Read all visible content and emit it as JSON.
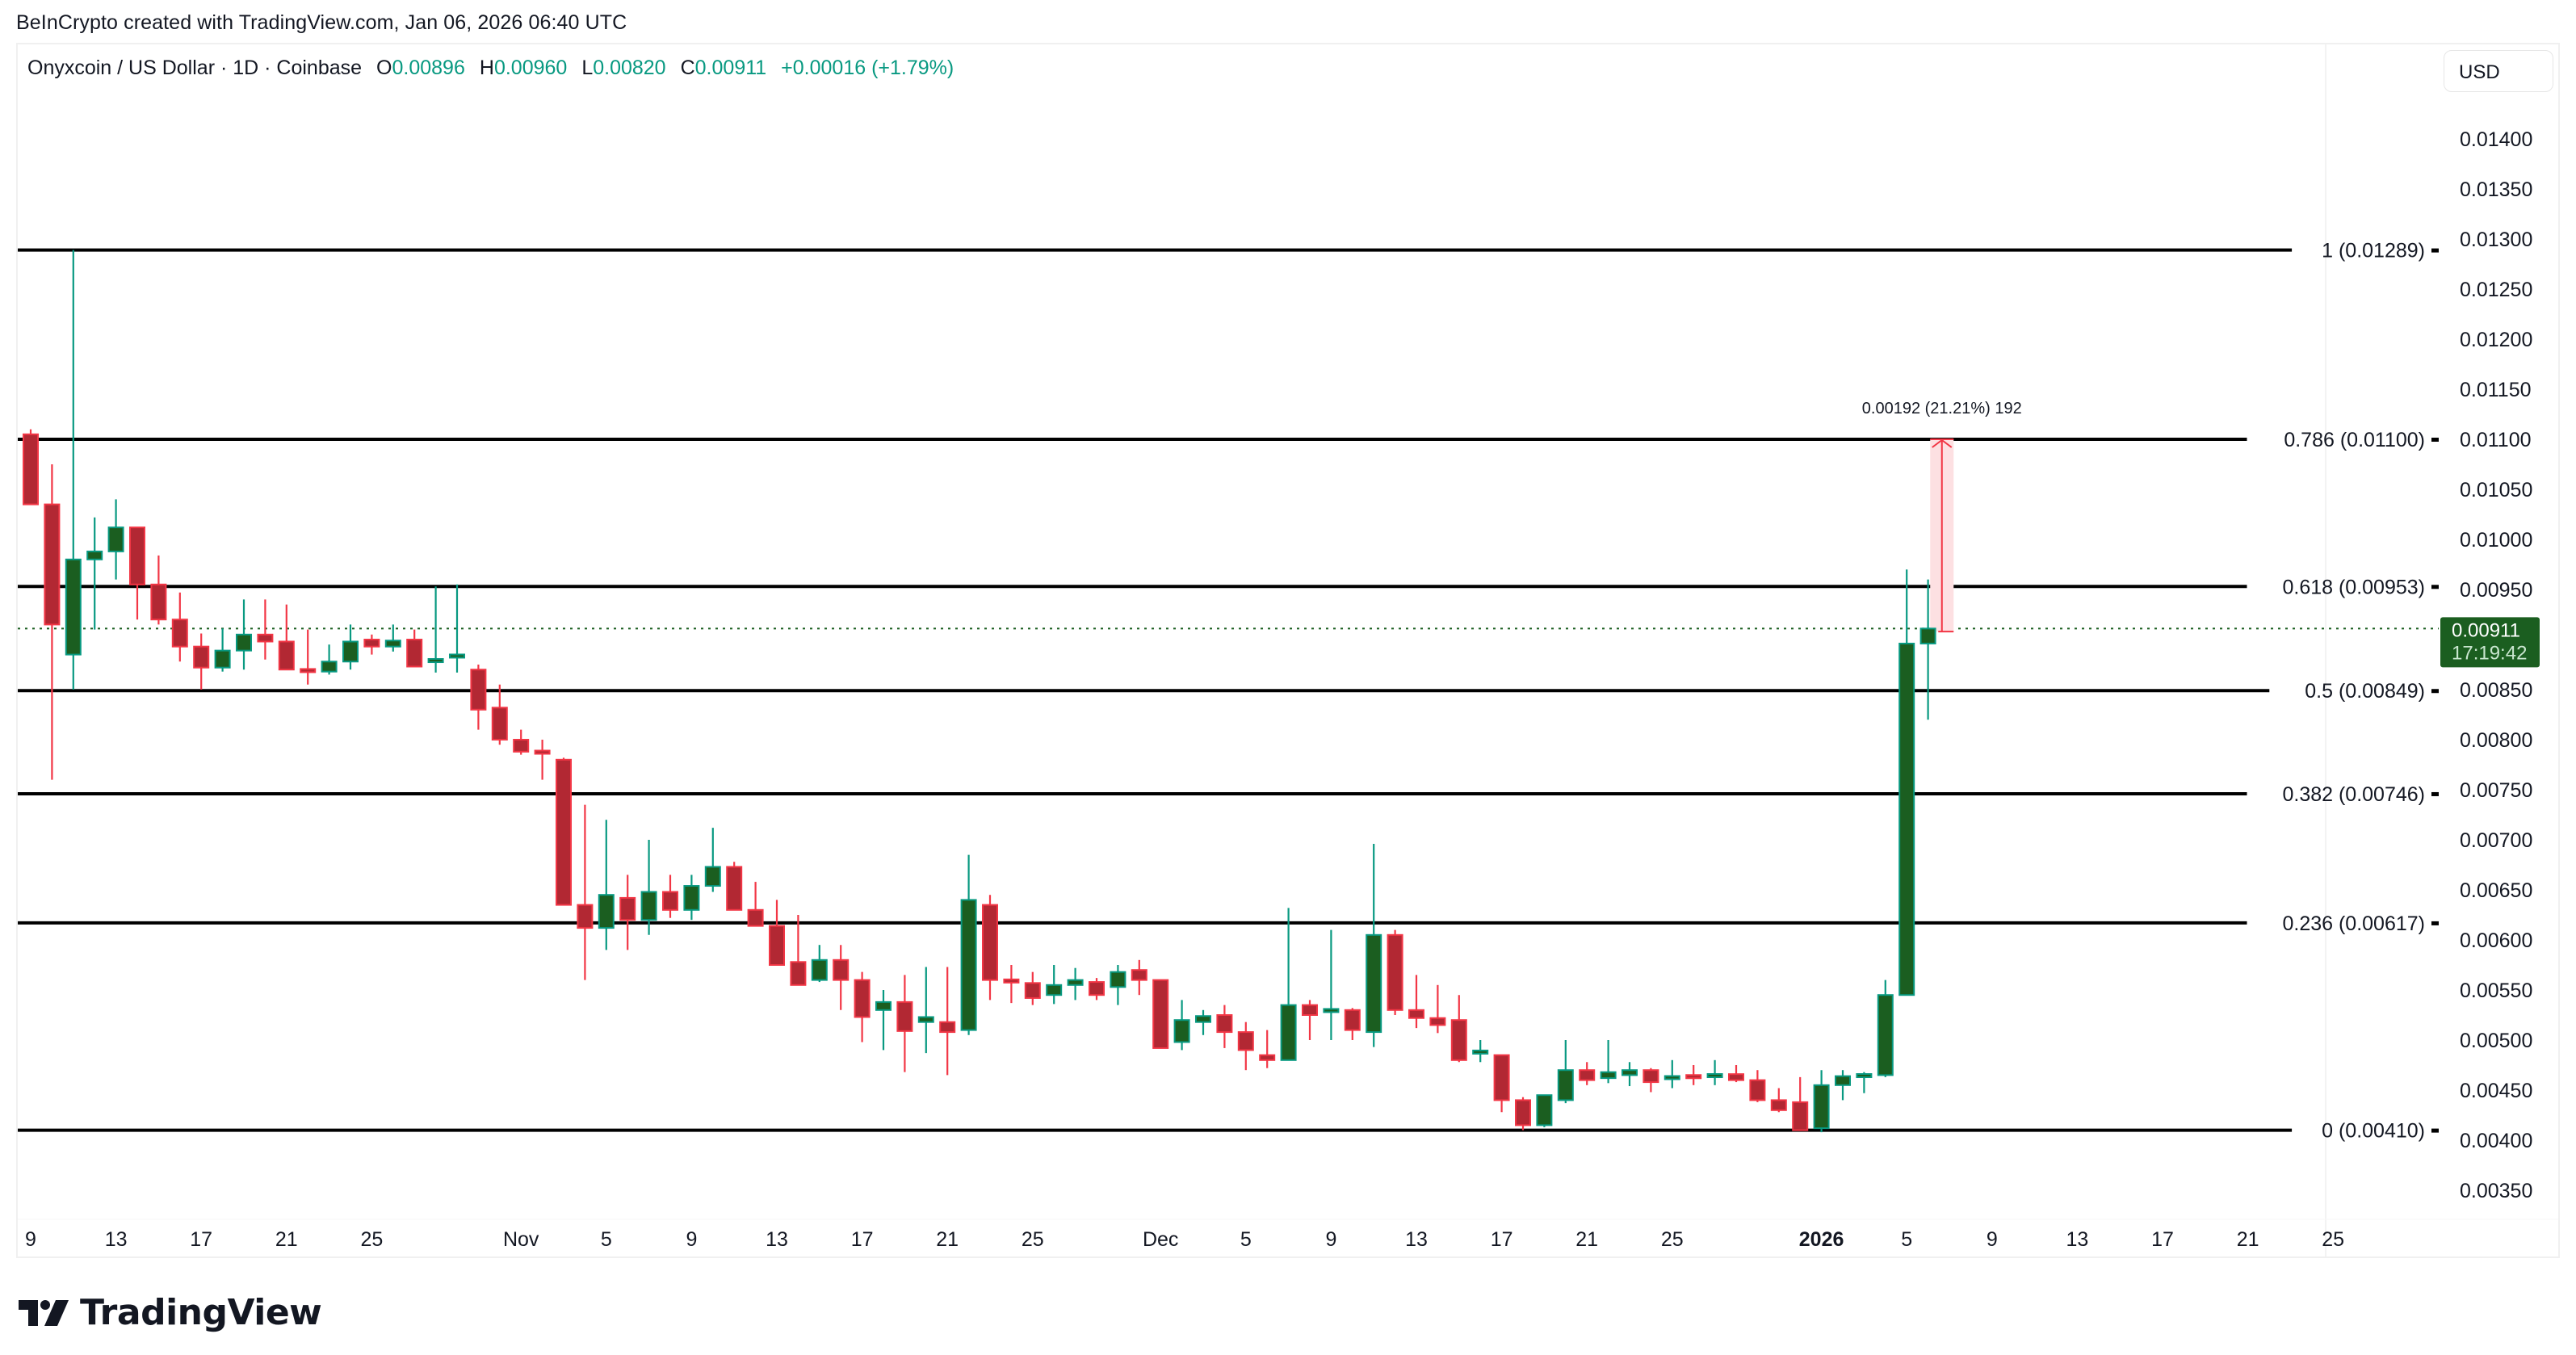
{
  "header": {
    "credit": "BeInCrypto created with TradingView.com, Jan 06, 2026 06:40 UTC"
  },
  "legend": {
    "symbol": "Onyxcoin / US Dollar · 1D · Coinbase",
    "open_label": "O",
    "open": "0.00896",
    "high_label": "H",
    "high": "0.00960",
    "low_label": "L",
    "low": "0.00820",
    "close_label": "C",
    "close": "0.00911",
    "change": "+0.00016 (+1.79%)"
  },
  "currency_button": "USD",
  "last_price": {
    "value": "0.00911",
    "countdown": "17:19:42"
  },
  "measure_label": "0.00192 (21.21%) 192",
  "footer": {
    "logo_text": "TradingView"
  },
  "colors": {
    "bull_body": "#1b5e20",
    "bull_border": "#089981",
    "bear_body": "#b22833",
    "bear_border": "#f23645",
    "fib_line": "#000000",
    "last_price_bg": "#1b5e20",
    "measure_fill": "#fde0e2",
    "measure_line": "#f23645"
  },
  "chart_data": {
    "type": "candlestick",
    "title": "Onyxcoin / US Dollar · 1D · Coinbase",
    "xlabel": "",
    "ylabel": "USD",
    "ylim": [
      0.0032,
      0.0143
    ],
    "grid": false,
    "y_ticks": [
      "0.01400",
      "0.01350",
      "0.01300",
      "0.01250",
      "0.01200",
      "0.01150",
      "0.01100",
      "0.01050",
      "0.01000",
      "0.00950",
      "0.00900",
      "0.00850",
      "0.00800",
      "0.00750",
      "0.00700",
      "0.00650",
      "0.00600",
      "0.00550",
      "0.00500",
      "0.00450",
      "0.00400",
      "0.00350"
    ],
    "x_ticks": [
      {
        "label": "9",
        "day": 0
      },
      {
        "label": "13",
        "day": 4
      },
      {
        "label": "17",
        "day": 8
      },
      {
        "label": "21",
        "day": 12
      },
      {
        "label": "25",
        "day": 16
      },
      {
        "label": "Nov",
        "day": 23
      },
      {
        "label": "5",
        "day": 27
      },
      {
        "label": "9",
        "day": 31
      },
      {
        "label": "13",
        "day": 35
      },
      {
        "label": "17",
        "day": 39
      },
      {
        "label": "21",
        "day": 43
      },
      {
        "label": "25",
        "day": 47
      },
      {
        "label": "Dec",
        "day": 53
      },
      {
        "label": "5",
        "day": 57
      },
      {
        "label": "9",
        "day": 61
      },
      {
        "label": "13",
        "day": 65
      },
      {
        "label": "17",
        "day": 69
      },
      {
        "label": "21",
        "day": 73
      },
      {
        "label": "25",
        "day": 77
      },
      {
        "label": "2026",
        "day": 84,
        "bold": true
      },
      {
        "label": "5",
        "day": 88
      },
      {
        "label": "9",
        "day": 92
      },
      {
        "label": "13",
        "day": 96
      },
      {
        "label": "17",
        "day": 100
      },
      {
        "label": "21",
        "day": 104
      },
      {
        "label": "25",
        "day": 108
      }
    ],
    "fib_levels": [
      {
        "ratio": "1",
        "price": 0.01289,
        "label": "1 (0.01289)"
      },
      {
        "ratio": "0.786",
        "price": 0.011,
        "label": "0.786 (0.01100)"
      },
      {
        "ratio": "0.618",
        "price": 0.00953,
        "label": "0.618 (0.00953)"
      },
      {
        "ratio": "0.5",
        "price": 0.00849,
        "label": "0.5 (0.00849)"
      },
      {
        "ratio": "0.382",
        "price": 0.00746,
        "label": "0.382 (0.00746)"
      },
      {
        "ratio": "0.236",
        "price": 0.00617,
        "label": "0.236 (0.00617)"
      },
      {
        "ratio": "0",
        "price": 0.0041,
        "label": "0 (0.00410)"
      }
    ],
    "last_price": 0.00911,
    "measure": {
      "from_price": 0.00908,
      "to_price": 0.011,
      "start_day": 89.1,
      "end_day": 90.2,
      "label": "0.00192 (21.21%) 192"
    },
    "start_date": "Oct 9, 2025",
    "candles": [
      [
        0.01105,
        0.0111,
        0.01035,
        0.01035
      ],
      [
        0.01035,
        0.01075,
        0.0076,
        0.00915
      ],
      [
        0.00885,
        0.01289,
        0.0085,
        0.0098
      ],
      [
        0.0098,
        0.01022,
        0.0091,
        0.00988
      ],
      [
        0.00988,
        0.0104,
        0.0096,
        0.01012
      ],
      [
        0.01012,
        0.01012,
        0.0092,
        0.00955
      ],
      [
        0.00955,
        0.00984,
        0.00915,
        0.0092
      ],
      [
        0.0092,
        0.00947,
        0.00878,
        0.00893
      ],
      [
        0.00893,
        0.00906,
        0.0085,
        0.00872
      ],
      [
        0.00872,
        0.00911,
        0.00868,
        0.00889
      ],
      [
        0.00889,
        0.0094,
        0.0087,
        0.00905
      ],
      [
        0.00905,
        0.0094,
        0.0088,
        0.00898
      ],
      [
        0.00898,
        0.00935,
        0.0087,
        0.0087
      ],
      [
        0.0087,
        0.0091,
        0.00855,
        0.00868
      ],
      [
        0.00868,
        0.00895,
        0.00865,
        0.00878
      ],
      [
        0.00878,
        0.00915,
        0.0087,
        0.00898
      ],
      [
        0.009,
        0.00905,
        0.00885,
        0.00893
      ],
      [
        0.00893,
        0.00915,
        0.00888,
        0.00899
      ],
      [
        0.009,
        0.0091,
        0.00875,
        0.00873
      ],
      [
        0.00878,
        0.00953,
        0.00867,
        0.0088
      ],
      [
        0.00882,
        0.00955,
        0.00867,
        0.00885
      ],
      [
        0.0087,
        0.00875,
        0.0081,
        0.0083
      ],
      [
        0.00832,
        0.00855,
        0.00795,
        0.008
      ],
      [
        0.008,
        0.0081,
        0.00785,
        0.00788
      ],
      [
        0.00788,
        0.008,
        0.0076,
        0.00787
      ],
      [
        0.0078,
        0.00782,
        0.00635,
        0.00635
      ],
      [
        0.00635,
        0.00735,
        0.0056,
        0.00612
      ],
      [
        0.00612,
        0.0072,
        0.0059,
        0.00645
      ],
      [
        0.00642,
        0.00665,
        0.0059,
        0.0062
      ],
      [
        0.0062,
        0.007,
        0.00605,
        0.00648
      ],
      [
        0.00648,
        0.00665,
        0.00622,
        0.0063
      ],
      [
        0.0063,
        0.00665,
        0.0062,
        0.00654
      ],
      [
        0.00654,
        0.00712,
        0.00648,
        0.00673
      ],
      [
        0.00673,
        0.00678,
        0.0063,
        0.0063
      ],
      [
        0.0063,
        0.00658,
        0.0062,
        0.00614
      ],
      [
        0.00614,
        0.0064,
        0.0059,
        0.00575
      ],
      [
        0.00578,
        0.00625,
        0.00565,
        0.00555
      ],
      [
        0.0056,
        0.00595,
        0.00558,
        0.0058
      ],
      [
        0.0058,
        0.00595,
        0.0053,
        0.0056
      ],
      [
        0.0056,
        0.00568,
        0.00498,
        0.00523
      ],
      [
        0.0053,
        0.0055,
        0.0049,
        0.00538
      ],
      [
        0.00538,
        0.00565,
        0.00468,
        0.00509
      ],
      [
        0.00518,
        0.00573,
        0.00487,
        0.00523
      ],
      [
        0.00518,
        0.00573,
        0.00465,
        0.00508
      ],
      [
        0.0051,
        0.00685,
        0.00505,
        0.0064
      ],
      [
        0.00635,
        0.00645,
        0.0054,
        0.0056
      ],
      [
        0.0056,
        0.00575,
        0.00537,
        0.00558
      ],
      [
        0.00557,
        0.00568,
        0.00535,
        0.00542
      ],
      [
        0.00545,
        0.00575,
        0.00536,
        0.00555
      ],
      [
        0.00555,
        0.00572,
        0.0054,
        0.0056
      ],
      [
        0.00558,
        0.00562,
        0.0054,
        0.00545
      ],
      [
        0.00553,
        0.00575,
        0.00535,
        0.00568
      ],
      [
        0.0057,
        0.0058,
        0.00545,
        0.0056
      ],
      [
        0.0056,
        0.0056,
        0.00492,
        0.00492
      ],
      [
        0.00498,
        0.0054,
        0.0049,
        0.0052
      ],
      [
        0.00518,
        0.0053,
        0.00505,
        0.00524
      ],
      [
        0.00525,
        0.00535,
        0.00492,
        0.00508
      ],
      [
        0.00508,
        0.00518,
        0.0047,
        0.0049
      ],
      [
        0.00485,
        0.0051,
        0.00472,
        0.0048
      ],
      [
        0.0048,
        0.00632,
        0.0048,
        0.00535
      ],
      [
        0.00535,
        0.0054,
        0.005,
        0.00525
      ],
      [
        0.00528,
        0.0061,
        0.005,
        0.00531
      ],
      [
        0.0053,
        0.00532,
        0.005,
        0.0051
      ],
      [
        0.00508,
        0.00696,
        0.00493,
        0.00605
      ],
      [
        0.00605,
        0.0061,
        0.00525,
        0.0053
      ],
      [
        0.0053,
        0.00565,
        0.00512,
        0.00522
      ],
      [
        0.00522,
        0.00555,
        0.00507,
        0.00515
      ],
      [
        0.0052,
        0.00545,
        0.00478,
        0.0048
      ],
      [
        0.00488,
        0.005,
        0.00478,
        0.00488
      ],
      [
        0.00485,
        0.00485,
        0.00428,
        0.0044
      ],
      [
        0.0044,
        0.00443,
        0.0041,
        0.00415
      ],
      [
        0.00415,
        0.0044,
        0.00413,
        0.00445
      ],
      [
        0.0044,
        0.005,
        0.00437,
        0.0047
      ],
      [
        0.0047,
        0.00478,
        0.00455,
        0.0046
      ],
      [
        0.00462,
        0.005,
        0.00457,
        0.00468
      ],
      [
        0.00465,
        0.00478,
        0.00454,
        0.0047
      ],
      [
        0.0047,
        0.00472,
        0.00448,
        0.00458
      ],
      [
        0.00462,
        0.0048,
        0.00452,
        0.00463
      ],
      [
        0.00465,
        0.00475,
        0.00455,
        0.00462
      ],
      [
        0.00463,
        0.0048,
        0.00455,
        0.00466
      ],
      [
        0.00466,
        0.00475,
        0.00458,
        0.0046
      ],
      [
        0.0046,
        0.0047,
        0.00438,
        0.0044
      ],
      [
        0.0044,
        0.00452,
        0.00428,
        0.0043
      ],
      [
        0.00438,
        0.00463,
        0.0041,
        0.0041
      ],
      [
        0.00412,
        0.0047,
        0.00408,
        0.00455
      ],
      [
        0.00455,
        0.0047,
        0.0044,
        0.00464
      ],
      [
        0.00464,
        0.00468,
        0.00447,
        0.00465
      ],
      [
        0.00465,
        0.0056,
        0.00463,
        0.00545
      ],
      [
        0.00545,
        0.0097,
        0.00545,
        0.00896
      ],
      [
        0.00896,
        0.0096,
        0.0082,
        0.00911
      ]
    ]
  }
}
